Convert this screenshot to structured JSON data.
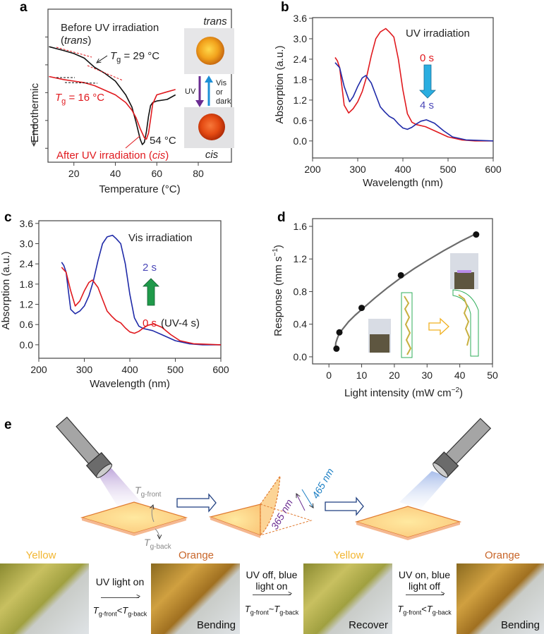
{
  "panel_labels": {
    "a": "a",
    "b": "b",
    "c": "c",
    "d": "d",
    "e": "e"
  },
  "colors": {
    "red": "#e0191e",
    "blue": "#1f2aa8",
    "black": "#111111",
    "gray": "#6b6b6b",
    "uv_purple": "#6a2c91",
    "vis_blue": "#1c8fd6",
    "arrow_cyan": "#2aaee0",
    "arrow_green": "#1f9a4a",
    "yellow_text": "#f2b632",
    "orange_text": "#c8662a"
  },
  "chart_data": [
    {
      "id": "a",
      "type": "line",
      "title": "",
      "xlabel": "Temperature (°C)",
      "ylabel": "Endothermic",
      "xlim": [
        7.5,
        96
      ],
      "ylim": [
        0,
        10
      ],
      "xticks": [
        20,
        40,
        60,
        80
      ],
      "series": [
        {
          "name": "Before UV irradiation (trans)",
          "color": "#111111",
          "x": [
            8,
            15,
            20,
            25,
            30,
            35,
            40,
            45,
            48,
            50,
            52,
            53,
            54,
            55,
            56,
            57,
            58,
            60,
            65,
            69
          ],
          "y": [
            7.55,
            7.3,
            7.1,
            6.8,
            6.2,
            5.8,
            5.3,
            4.4,
            3.6,
            2.6,
            1.5,
            1.15,
            1.3,
            2.0,
            3.0,
            3.7,
            3.9,
            4.0,
            4.1,
            4.4
          ]
        },
        {
          "name": "After UV irradiation (cis)",
          "color": "#e0191e",
          "x": [
            8,
            15,
            20,
            25,
            30,
            35,
            40,
            45,
            48,
            50,
            52,
            54,
            55,
            56,
            57,
            58,
            60,
            65,
            69
          ],
          "y": [
            5.6,
            5.4,
            5.3,
            5.2,
            5.0,
            4.7,
            4.4,
            3.9,
            3.4,
            2.9,
            2.2,
            1.6,
            1.5,
            1.9,
            2.8,
            3.8,
            4.4,
            4.6,
            4.75
          ]
        }
      ],
      "annotations": {
        "before_line1": "Before UV irradiation",
        "before_paren_open": "(",
        "before_trans": "trans",
        "before_paren_close": ")",
        "tg_before": {
          "sym": "T",
          "sub": "g",
          "value": " = 29 °C"
        },
        "tg_after": {
          "sym": "T",
          "sub": "g",
          "value": " = 16 °C"
        },
        "peak": "54 °C",
        "after_text": "After UV irradiation (",
        "after_cis": "cis",
        "after_close": ")",
        "inset_trans": "trans",
        "inset_cis": "cis",
        "inset_uv": "UV",
        "inset_vis1": "Vis",
        "inset_vis2": "or",
        "inset_vis3": "dark"
      }
    },
    {
      "id": "b",
      "type": "line",
      "title": "UV irradiation",
      "xlabel": "Wavelength (nm)",
      "ylabel": "Absorption (a.u.)",
      "xlim": [
        200,
        600
      ],
      "ylim": [
        -0.5,
        3.62
      ],
      "xticks": [
        200,
        300,
        400,
        500,
        600
      ],
      "yticks": [
        0.0,
        0.6,
        1.2,
        1.8,
        2.4,
        3.0,
        3.6
      ],
      "ytick_labels": [
        "0.0",
        "0.6",
        "1.2",
        "1.8",
        "2.4",
        "3.0",
        "3.6"
      ],
      "series": [
        {
          "name": "0 s",
          "color": "#e0191e",
          "x": [
            250,
            255,
            260,
            265,
            270,
            280,
            290,
            300,
            310,
            320,
            330,
            340,
            350,
            362,
            370,
            380,
            390,
            400,
            410,
            420,
            430,
            450,
            470,
            500,
            530,
            560,
            600
          ],
          "y": [
            2.45,
            2.35,
            2.15,
            1.6,
            1.05,
            0.82,
            0.95,
            1.15,
            1.45,
            1.9,
            2.5,
            3.0,
            3.2,
            3.3,
            3.2,
            3.05,
            2.4,
            1.5,
            0.8,
            0.55,
            0.48,
            0.42,
            0.3,
            0.12,
            0.03,
            0.0,
            0.0
          ]
        },
        {
          "name": "4 s",
          "color": "#1f2aa8",
          "x": [
            250,
            260,
            270,
            282,
            290,
            300,
            310,
            318,
            330,
            340,
            350,
            360,
            370,
            380,
            390,
            400,
            410,
            420,
            430,
            440,
            452,
            470,
            490,
            510,
            540,
            600
          ],
          "y": [
            2.3,
            2.15,
            1.6,
            1.15,
            1.3,
            1.6,
            1.85,
            1.92,
            1.7,
            1.35,
            1.0,
            0.85,
            0.72,
            0.65,
            0.5,
            0.38,
            0.34,
            0.4,
            0.5,
            0.58,
            0.62,
            0.52,
            0.3,
            0.12,
            0.03,
            0.0
          ]
        }
      ],
      "annotations": {
        "start": "0 s",
        "end": "4 s"
      }
    },
    {
      "id": "c",
      "type": "line",
      "title": "Vis irradiation",
      "xlabel": "Wavelength (nm)",
      "ylabel": "Absorption (a.u.)",
      "xlim": [
        200,
        600
      ],
      "ylim": [
        -0.4,
        3.68
      ],
      "xticks": [
        200,
        300,
        400,
        500,
        600
      ],
      "yticks": [
        0.0,
        0.6,
        1.2,
        1.8,
        2.4,
        3.0,
        3.6
      ],
      "ytick_labels": [
        "0.0",
        "0.6",
        "1.2",
        "1.8",
        "2.4",
        "3.0",
        "3.6"
      ],
      "series": [
        {
          "name": "2 s",
          "color": "#1f2aa8",
          "x": [
            250,
            255,
            260,
            265,
            270,
            280,
            290,
            300,
            310,
            320,
            330,
            340,
            350,
            362,
            370,
            380,
            390,
            400,
            410,
            420,
            430,
            450,
            470,
            500,
            530,
            560,
            600
          ],
          "y": [
            2.45,
            2.35,
            2.15,
            1.6,
            1.05,
            0.92,
            1.0,
            1.15,
            1.45,
            1.9,
            2.5,
            3.0,
            3.2,
            3.25,
            3.15,
            3.0,
            2.4,
            1.5,
            0.8,
            0.55,
            0.48,
            0.42,
            0.3,
            0.12,
            0.03,
            0.0,
            0.0
          ]
        },
        {
          "name": "0 s",
          "color": "#e0191e",
          "x": [
            250,
            260,
            270,
            280,
            290,
            300,
            310,
            318,
            330,
            340,
            350,
            360,
            370,
            380,
            390,
            400,
            410,
            420,
            430,
            440,
            452,
            470,
            490,
            510,
            540,
            600
          ],
          "y": [
            2.3,
            2.15,
            1.6,
            1.15,
            1.3,
            1.6,
            1.85,
            1.92,
            1.7,
            1.35,
            1.0,
            0.85,
            0.72,
            0.65,
            0.5,
            0.38,
            0.34,
            0.4,
            0.5,
            0.58,
            0.62,
            0.52,
            0.3,
            0.12,
            0.03,
            0.0
          ]
        }
      ],
      "annotations": {
        "end": "2 s",
        "start": "0 s",
        "start_note": "(UV-4 s)"
      }
    },
    {
      "id": "d",
      "type": "scatter",
      "title": "",
      "xlabel": "Light intensity (mW cm",
      "xlabel_sup": "−2",
      "xlabel_close": ")",
      "ylabel": "Response (mm s",
      "ylabel_sup": "−1",
      "ylabel_close": ")",
      "xlim": [
        -5,
        50
      ],
      "ylim": [
        -0.087,
        1.695
      ],
      "xticks": [
        0,
        10,
        20,
        30,
        40,
        50
      ],
      "yticks": [
        0.0,
        0.4,
        0.8,
        1.2,
        1.6
      ],
      "ytick_labels": [
        "0.0",
        "0.4",
        "0.8",
        "1.2",
        "1.6"
      ],
      "points": {
        "x": [
          2.3,
          3.2,
          10,
          22,
          45
        ],
        "y": [
          0.1,
          0.3,
          0.6,
          1.0,
          1.5
        ]
      },
      "fit": {
        "x": [
          2.0,
          2.1,
          2.5,
          3,
          4,
          6,
          8,
          10,
          14,
          18,
          22,
          26,
          30,
          35,
          40,
          45
        ],
        "y": [
          0.12,
          0.17,
          0.22,
          0.27,
          0.33,
          0.43,
          0.51,
          0.58,
          0.72,
          0.85,
          0.97,
          1.08,
          1.18,
          1.3,
          1.41,
          1.51
        ]
      }
    }
  ],
  "panel_e": {
    "tg_front": {
      "sym": "T",
      "sub": "g-front"
    },
    "tg_back": {
      "sym": "T",
      "sub": "g-back"
    },
    "uv_wavelength": "365 nm",
    "vis_wavelength": "465 nm",
    "color_labels": [
      "Yellow",
      "Orange",
      "Yellow",
      "Orange"
    ],
    "photo_captions": [
      "",
      "Bending",
      "Recover",
      "Bending"
    ],
    "transitions": [
      {
        "line1": "UV light on",
        "line2": "",
        "rel": "<"
      },
      {
        "line1": "UV off, blue",
        "line2": "light on",
        "rel": "~"
      },
      {
        "line1": "UV on, blue",
        "line2": "light off",
        "rel": "<"
      }
    ]
  }
}
